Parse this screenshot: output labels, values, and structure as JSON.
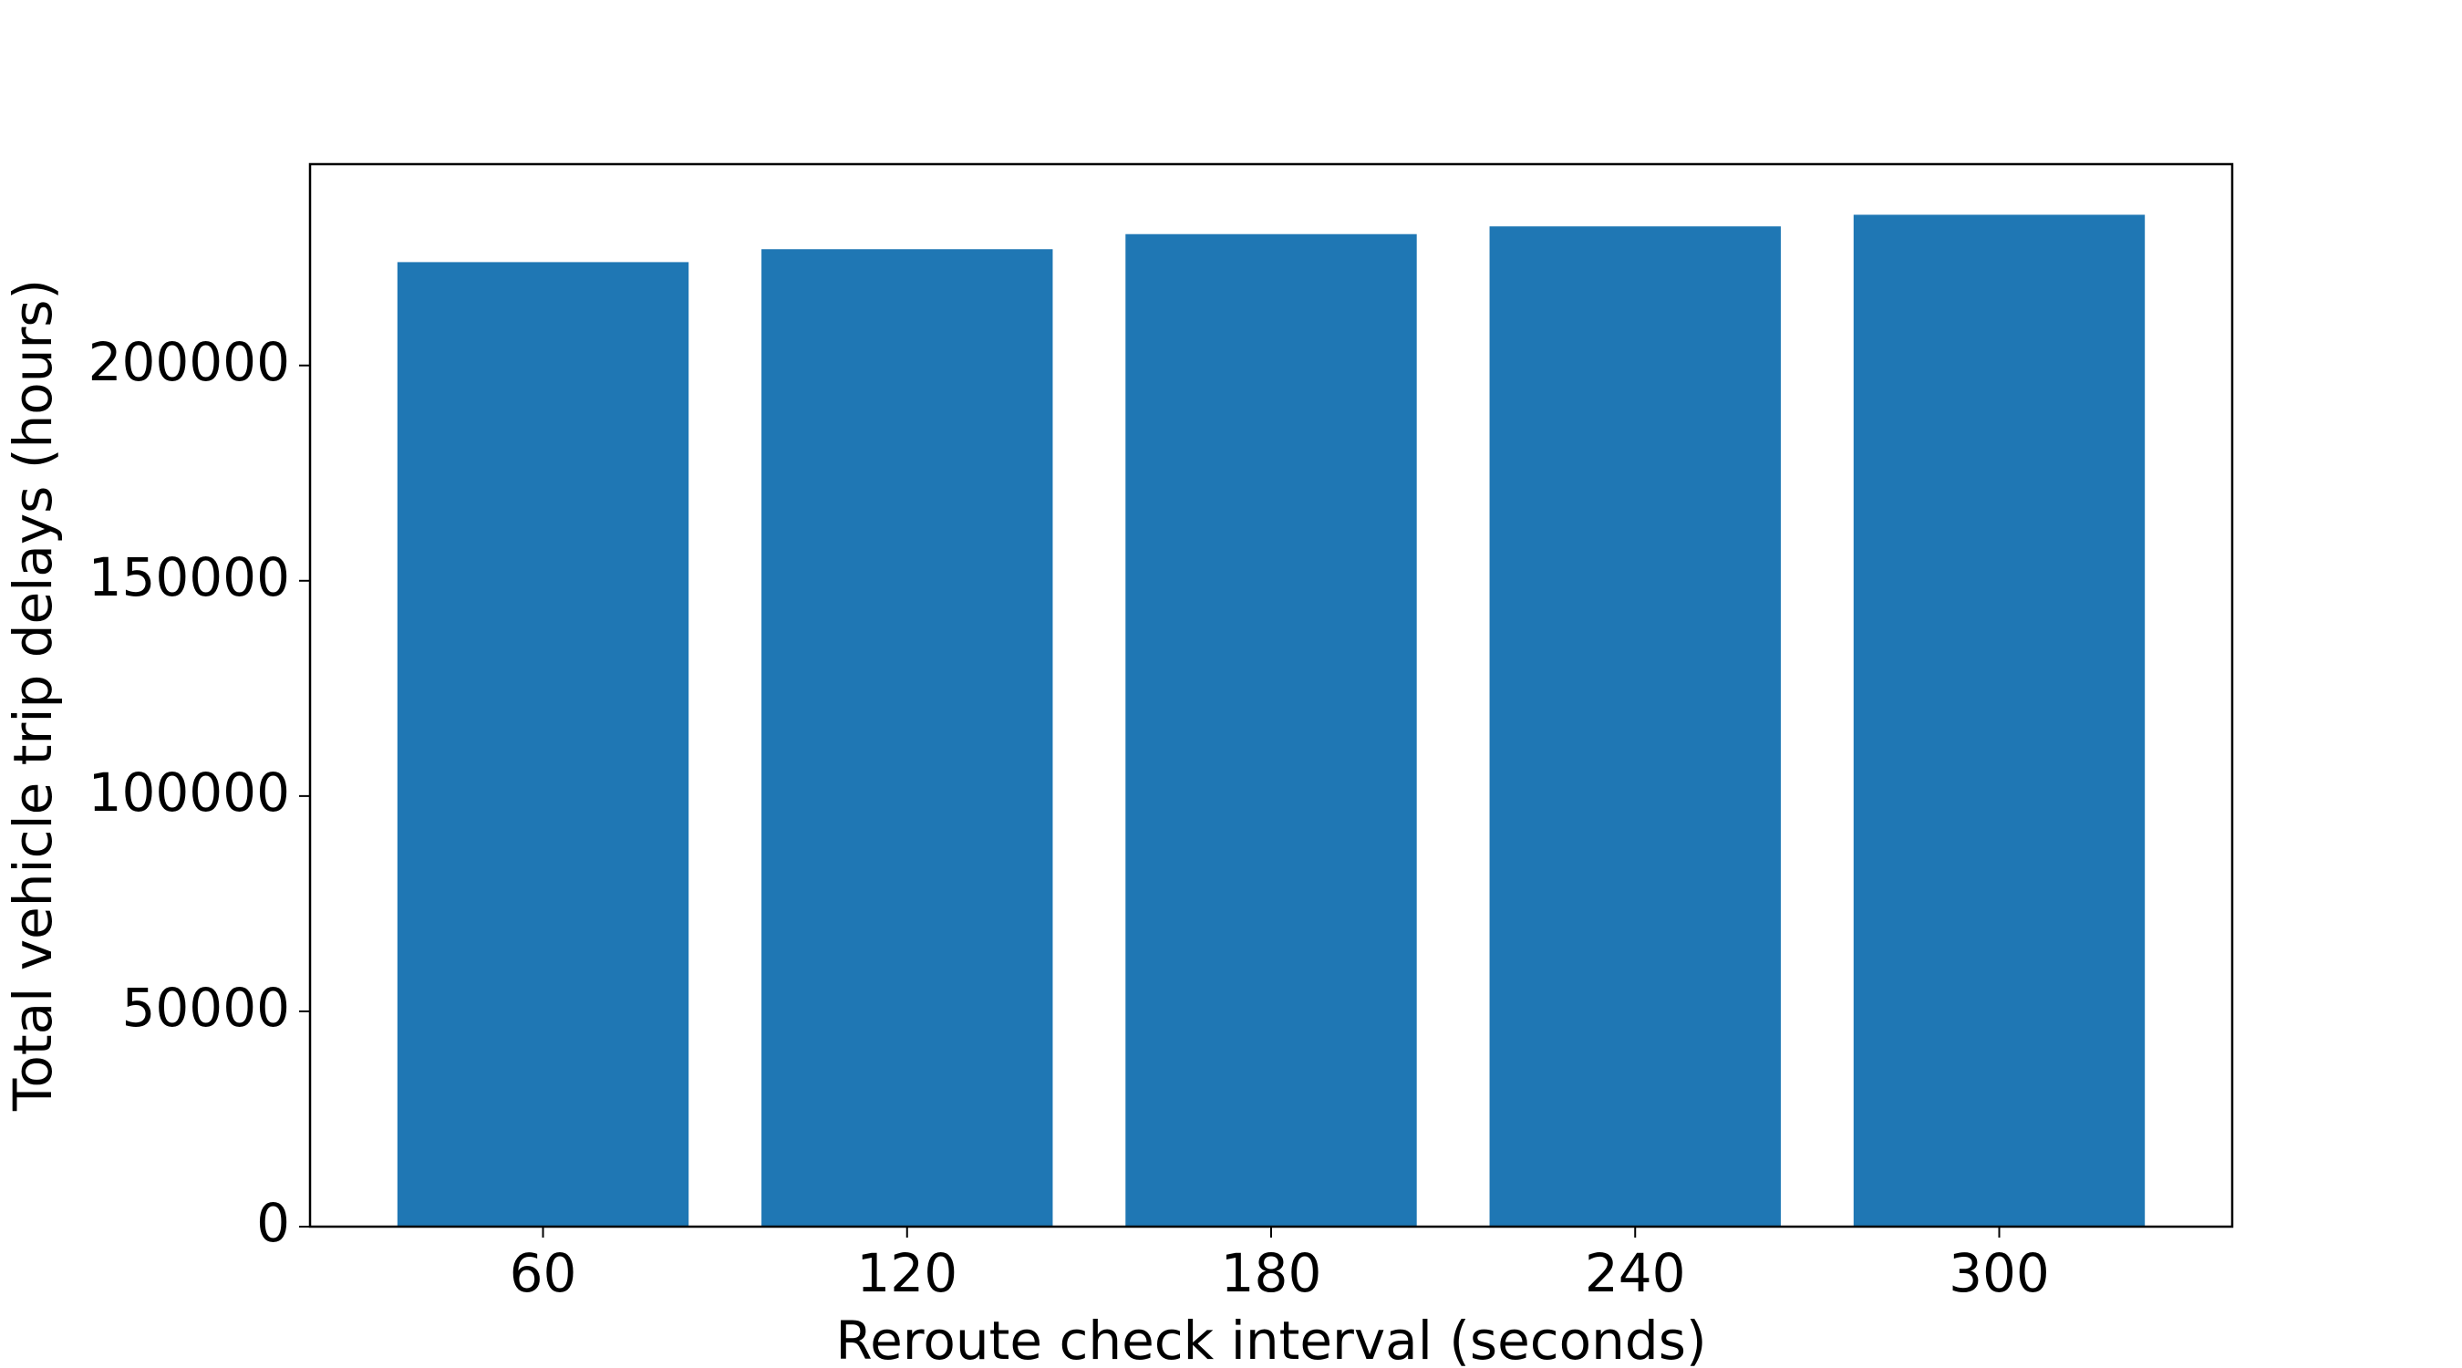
{
  "chart_data": {
    "type": "bar",
    "x_label": "Reroute check interval (seconds)",
    "y_label": "Total vehicle trip delays (hours)",
    "x": [
      60,
      120,
      180,
      240,
      300
    ],
    "values": [
      224000,
      227000,
      230500,
      232300,
      235000
    ],
    "color": "#1f77b4",
    "xlim": [
      21.6,
      338.4
    ],
    "xticks": [
      60,
      120,
      180,
      240,
      300
    ],
    "ylim": [
      0,
      246750
    ],
    "yticks": [
      0,
      50000,
      100000,
      150000,
      200000
    ],
    "grid": false
  }
}
